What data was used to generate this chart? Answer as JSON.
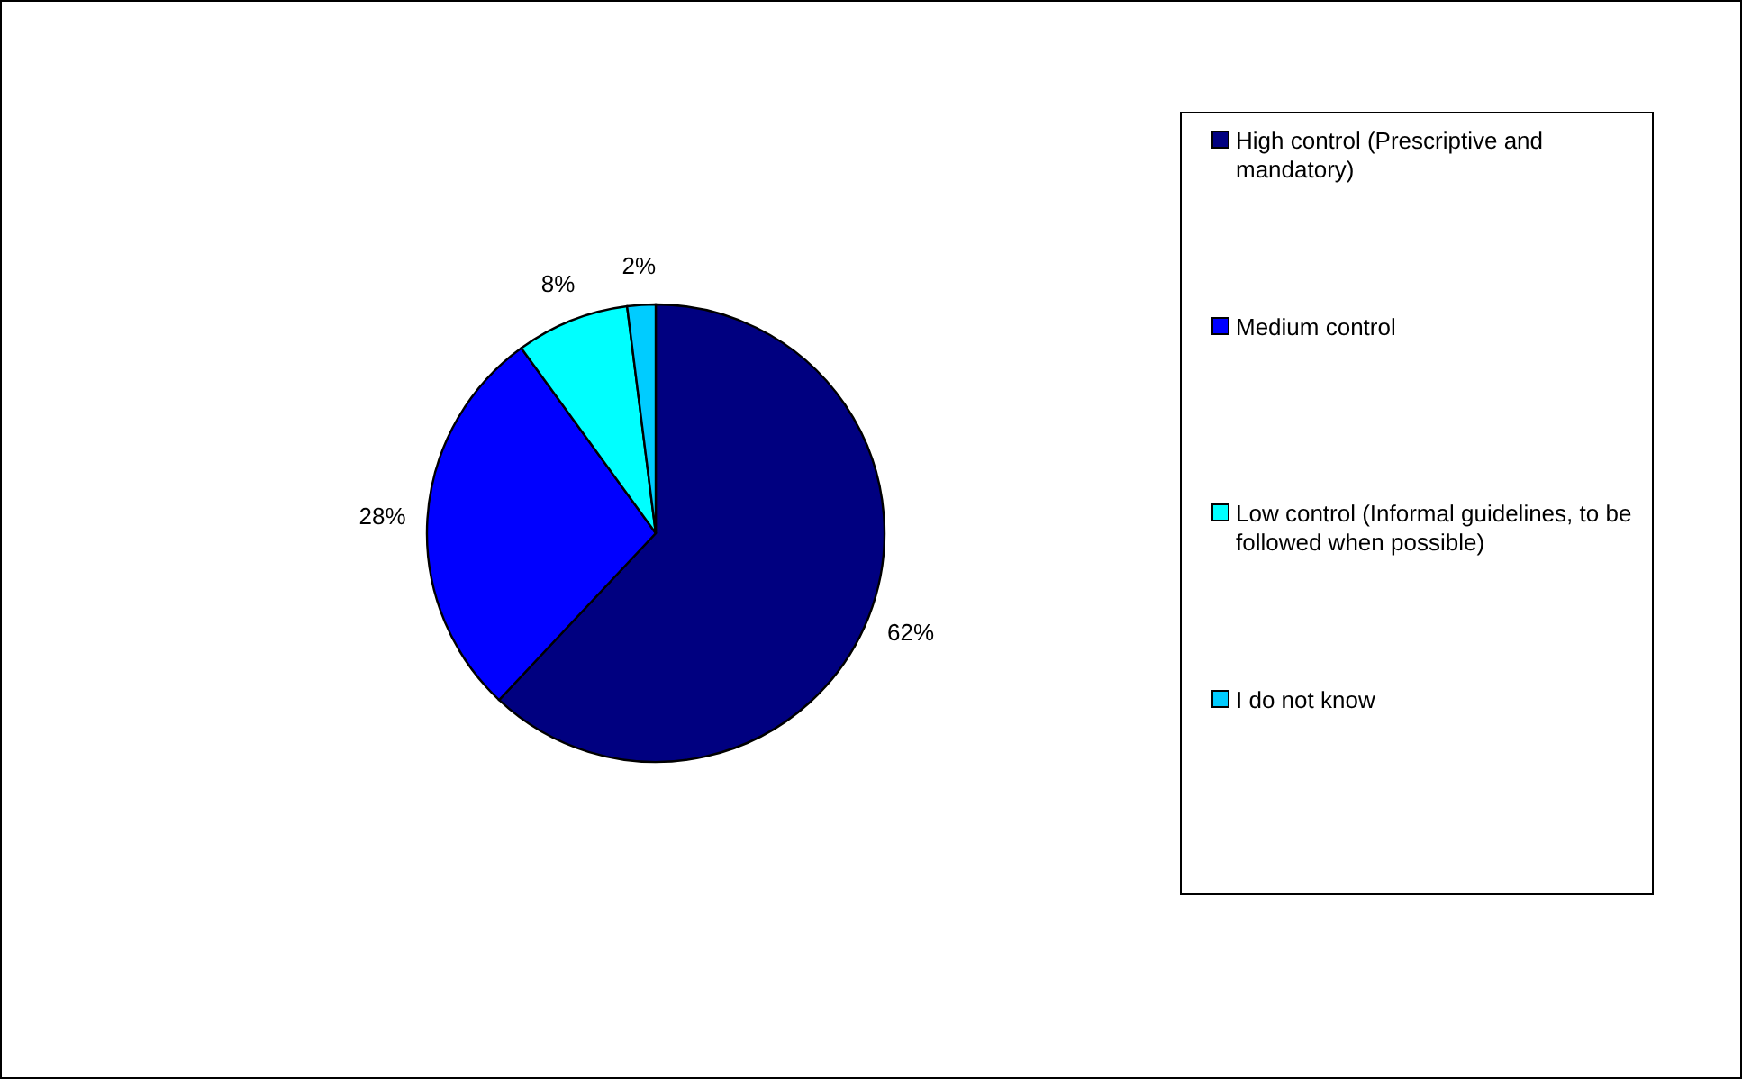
{
  "chart_data": {
    "type": "pie",
    "categories": [
      "High control (Prescriptive and mandatory)",
      "Medium control",
      "Low control (Informal guidelines, to be followed when possible)",
      "I do not know"
    ],
    "values": [
      62,
      28,
      8,
      2
    ],
    "colors": [
      "#000080",
      "#0000ff",
      "#00ffff",
      "#00ccff"
    ],
    "value_labels": [
      "62%",
      "28%",
      "8%",
      "2%"
    ],
    "legend": "right"
  }
}
